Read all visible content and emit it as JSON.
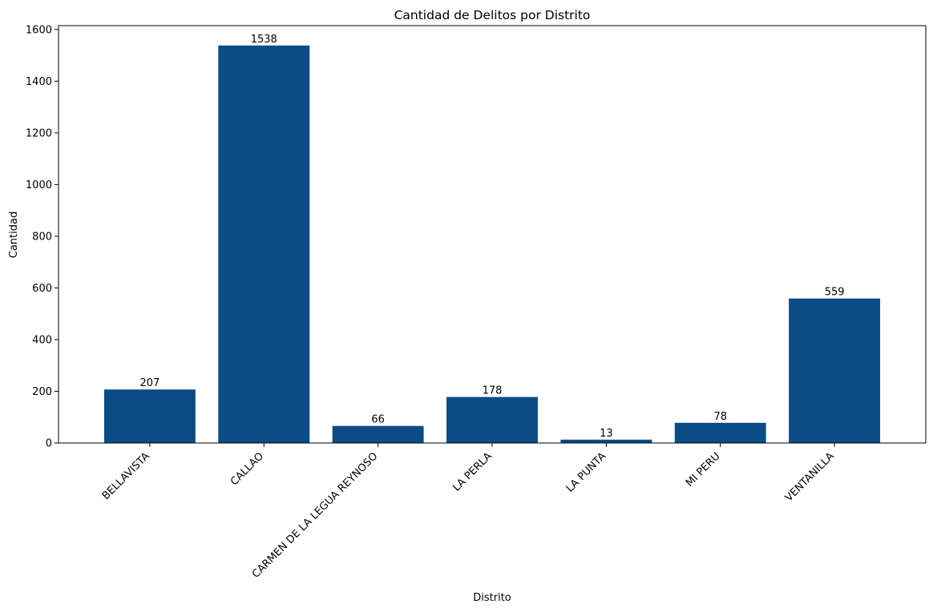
{
  "chart_data": {
    "type": "bar",
    "title": "Cantidad de Delitos por Distrito",
    "xlabel": "Distrito",
    "ylabel": "Cantidad",
    "categories": [
      "BELLAVISTA",
      "CALLAO",
      "CARMEN DE LA LEGUA REYNOSO",
      "LA PERLA",
      "LA PUNTA",
      "MI PERU",
      "VENTANILLA"
    ],
    "values": [
      207,
      1538,
      66,
      178,
      13,
      78,
      559
    ],
    "ylim": [
      0,
      1614.9
    ],
    "yticks": [
      0,
      200,
      400,
      600,
      800,
      1000,
      1200,
      1400,
      1600
    ],
    "bar_color": "#0b4c86",
    "grid": false,
    "legend": "none",
    "data_labels": true
  }
}
